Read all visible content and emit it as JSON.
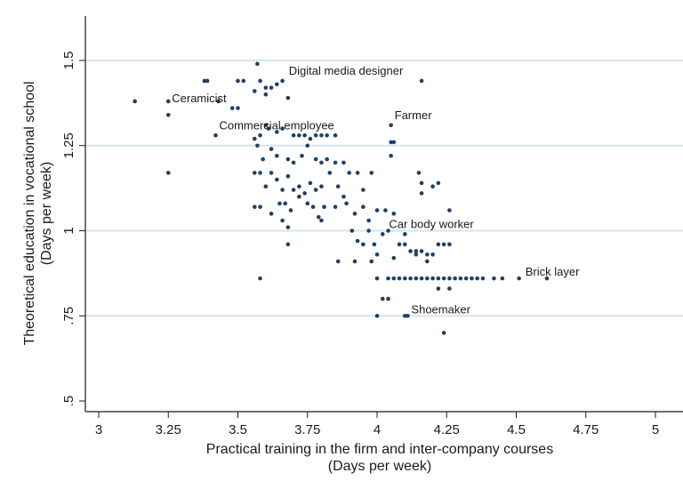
{
  "chart_data": {
    "type": "scatter",
    "xlim": [
      3,
      5
    ],
    "ylim": [
      0.5,
      1.65
    ],
    "x_ticks": [
      3,
      3.25,
      3.5,
      3.75,
      4,
      4.25,
      4.5,
      4.75,
      5
    ],
    "x_tick_labels": [
      "3",
      "3.25",
      "3.5",
      "3.75",
      "4",
      "4.25",
      "4.5",
      "4.75",
      "5"
    ],
    "y_ticks": [
      0.5,
      0.75,
      1,
      1.25,
      1.5
    ],
    "y_tick_labels": [
      ".5",
      ".75",
      "1",
      "1.25",
      "1.5"
    ],
    "xlabel": "Practical training in the firm and inter-company courses",
    "xlabel_sub": "(Days per week)",
    "ylabel": "Theoretical education in vocational school",
    "ylabel_sub": "(Days per week)",
    "grid": "horizontal",
    "colors": {
      "marker": "#1f3f66",
      "grid": "#d5e6ea",
      "axis": "#1a1a1a",
      "text": "#1a1a1a"
    },
    "annotations": [
      {
        "text": "Digital media designer",
        "x": 3.67,
        "y": 1.45
      },
      {
        "text": "Ceramicist",
        "x": 3.25,
        "y": 1.37
      },
      {
        "text": "Commercial employee",
        "x": 3.42,
        "y": 1.29
      },
      {
        "text": "Farmer",
        "x": 4.05,
        "y": 1.32
      },
      {
        "text": "Car body worker",
        "x": 4.03,
        "y": 1.0
      },
      {
        "text": "Brick layer",
        "x": 4.52,
        "y": 0.86
      },
      {
        "text": "Shoemaker",
        "x": 4.11,
        "y": 0.75
      }
    ],
    "points": [
      [
        3.13,
        1.38
      ],
      [
        3.25,
        1.38
      ],
      [
        3.25,
        1.34
      ],
      [
        3.25,
        1.17
      ],
      [
        3.38,
        1.44
      ],
      [
        3.39,
        1.44
      ],
      [
        3.43,
        1.38
      ],
      [
        3.48,
        1.36
      ],
      [
        3.5,
        1.36
      ],
      [
        3.5,
        1.44
      ],
      [
        3.52,
        1.44
      ],
      [
        3.56,
        1.41
      ],
      [
        3.57,
        1.49
      ],
      [
        3.58,
        1.44
      ],
      [
        3.6,
        1.4
      ],
      [
        3.62,
        1.42
      ],
      [
        3.64,
        1.43
      ],
      [
        3.66,
        1.44
      ],
      [
        3.68,
        1.39
      ],
      [
        3.6,
        1.42
      ],
      [
        3.58,
        1.28
      ],
      [
        3.6,
        1.31
      ],
      [
        3.61,
        1.3
      ],
      [
        3.64,
        1.29
      ],
      [
        3.66,
        1.3
      ],
      [
        3.7,
        1.28
      ],
      [
        3.72,
        1.28
      ],
      [
        3.74,
        1.28
      ],
      [
        3.76,
        1.27
      ],
      [
        3.78,
        1.28
      ],
      [
        3.8,
        1.28
      ],
      [
        3.82,
        1.28
      ],
      [
        3.85,
        1.28
      ],
      [
        3.42,
        1.28
      ],
      [
        3.56,
        1.27
      ],
      [
        3.57,
        1.25
      ],
      [
        3.59,
        1.21
      ],
      [
        3.62,
        1.24
      ],
      [
        3.64,
        1.22
      ],
      [
        3.68,
        1.21
      ],
      [
        3.7,
        1.2
      ],
      [
        3.73,
        1.22
      ],
      [
        3.75,
        1.25
      ],
      [
        3.78,
        1.21
      ],
      [
        3.8,
        1.2
      ],
      [
        3.82,
        1.21
      ],
      [
        3.85,
        1.2
      ],
      [
        3.88,
        1.2
      ],
      [
        3.56,
        1.17
      ],
      [
        3.58,
        1.17
      ],
      [
        3.6,
        1.13
      ],
      [
        3.62,
        1.17
      ],
      [
        3.64,
        1.15
      ],
      [
        3.66,
        1.12
      ],
      [
        3.68,
        1.16
      ],
      [
        3.7,
        1.12
      ],
      [
        3.72,
        1.13
      ],
      [
        3.74,
        1.11
      ],
      [
        3.76,
        1.14
      ],
      [
        3.78,
        1.12
      ],
      [
        3.8,
        1.13
      ],
      [
        3.83,
        1.17
      ],
      [
        3.86,
        1.13
      ],
      [
        3.88,
        1.1
      ],
      [
        3.9,
        1.17
      ],
      [
        3.93,
        1.17
      ],
      [
        3.95,
        1.12
      ],
      [
        3.98,
        1.17
      ],
      [
        3.56,
        1.07
      ],
      [
        3.58,
        1.07
      ],
      [
        3.62,
        1.05
      ],
      [
        3.65,
        1.08
      ],
      [
        3.67,
        1.08
      ],
      [
        3.69,
        1.06
      ],
      [
        3.72,
        1.1
      ],
      [
        3.75,
        1.08
      ],
      [
        3.77,
        1.07
      ],
      [
        3.79,
        1.04
      ],
      [
        3.81,
        1.07
      ],
      [
        3.85,
        1.07
      ],
      [
        3.89,
        1.08
      ],
      [
        3.92,
        1.05
      ],
      [
        3.95,
        1.07
      ],
      [
        3.97,
        1.03
      ],
      [
        4.0,
        1.06
      ],
      [
        4.03,
        1.06
      ],
      [
        4.06,
        1.05
      ],
      [
        3.66,
        1.03
      ],
      [
        3.68,
        1.01
      ],
      [
        3.68,
        0.96
      ],
      [
        3.8,
        1.03
      ],
      [
        3.91,
        1.0
      ],
      [
        3.93,
        0.97
      ],
      [
        3.95,
        0.96
      ],
      [
        3.97,
        1.0
      ],
      [
        3.99,
        0.96
      ],
      [
        4.02,
        0.99
      ],
      [
        4.04,
        1.0
      ],
      [
        3.86,
        0.91
      ],
      [
        3.92,
        0.91
      ],
      [
        3.98,
        0.91
      ],
      [
        4.0,
        0.93
      ],
      [
        4.06,
        0.92
      ],
      [
        4.08,
        0.96
      ],
      [
        4.1,
        0.96
      ],
      [
        4.12,
        0.94
      ],
      [
        4.14,
        0.94
      ],
      [
        4.16,
        0.94
      ],
      [
        4.18,
        0.93
      ],
      [
        4.2,
        0.93
      ],
      [
        4.22,
        0.96
      ],
      [
        4.24,
        0.96
      ],
      [
        4.26,
        0.96
      ],
      [
        4.1,
        0.99
      ],
      [
        4.14,
        0.93
      ],
      [
        4.18,
        0.91
      ],
      [
        4.16,
        1.11
      ],
      [
        4.16,
        1.14
      ],
      [
        4.15,
        1.17
      ],
      [
        4.2,
        1.13
      ],
      [
        4.22,
        1.14
      ],
      [
        4.26,
        1.06
      ],
      [
        4.05,
        1.22
      ],
      [
        4.05,
        1.26
      ],
      [
        4.06,
        1.26
      ],
      [
        4.05,
        1.31
      ],
      [
        4.16,
        1.44
      ],
      [
        3.58,
        0.86
      ],
      [
        4.0,
        0.75
      ],
      [
        4.02,
        0.8
      ],
      [
        4.04,
        0.8
      ],
      [
        4.1,
        0.75
      ],
      [
        4.11,
        0.75
      ],
      [
        4.24,
        0.7
      ],
      [
        4.0,
        0.86
      ],
      [
        4.04,
        0.86
      ],
      [
        4.06,
        0.86
      ],
      [
        4.08,
        0.86
      ],
      [
        4.1,
        0.86
      ],
      [
        4.12,
        0.86
      ],
      [
        4.14,
        0.86
      ],
      [
        4.16,
        0.86
      ],
      [
        4.18,
        0.86
      ],
      [
        4.2,
        0.86
      ],
      [
        4.22,
        0.86
      ],
      [
        4.24,
        0.86
      ],
      [
        4.26,
        0.86
      ],
      [
        4.28,
        0.86
      ],
      [
        4.3,
        0.86
      ],
      [
        4.32,
        0.86
      ],
      [
        4.34,
        0.86
      ],
      [
        4.36,
        0.86
      ],
      [
        4.38,
        0.86
      ],
      [
        4.42,
        0.86
      ],
      [
        4.45,
        0.86
      ],
      [
        4.51,
        0.86
      ],
      [
        4.61,
        0.86
      ],
      [
        4.22,
        0.83
      ],
      [
        4.26,
        0.83
      ]
    ]
  }
}
